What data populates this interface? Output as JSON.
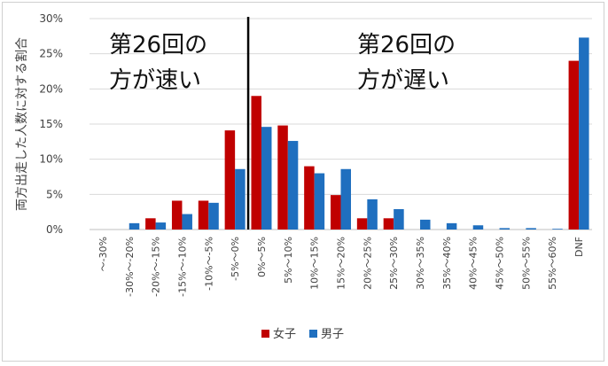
{
  "chart_data": {
    "type": "bar",
    "title": "",
    "xlabel": "",
    "ylabel": "両方出走した人数に対する割合",
    "ylim": [
      0,
      30
    ],
    "y_tick_labels": [
      "0%",
      "5%",
      "10%",
      "15%",
      "20%",
      "25%",
      "30%"
    ],
    "grid": true,
    "legend_position": "bottom",
    "categories": [
      "～-30%",
      "-30%～-20%",
      "-20%～-15%",
      "-15%～-10%",
      "-10%～-5%",
      "-5%～0%",
      "0%～5%",
      "5%～10%",
      "10%～15%",
      "15%～20%",
      "20%～25%",
      "25%～30%",
      "30%～35%",
      "35%～40%",
      "40%～45%",
      "45%～50%",
      "50%～55%",
      "55%～60%",
      "DNF"
    ],
    "series": [
      {
        "name": "女子",
        "color": "#c00000",
        "values": [
          0,
          0,
          1.6,
          4.1,
          4.1,
          14.1,
          19.0,
          14.8,
          9.0,
          4.9,
          1.6,
          1.6,
          0,
          0,
          0,
          0,
          0,
          0,
          24.0
        ]
      },
      {
        "name": "男子",
        "color": "#1f6fbf",
        "values": [
          0,
          0.9,
          1.0,
          2.2,
          3.8,
          8.6,
          14.6,
          12.6,
          8.0,
          8.6,
          4.3,
          2.9,
          1.4,
          0.9,
          0.6,
          0.2,
          0.2,
          0.1,
          27.3
        ]
      }
    ],
    "annotations": [
      {
        "text_line1": "第26回の",
        "text_line2": "方が速い"
      },
      {
        "text_line1": "第26回の",
        "text_line2": "方が遅い"
      }
    ],
    "divider_between": [
      "-5%～0%",
      "0%～5%"
    ]
  }
}
